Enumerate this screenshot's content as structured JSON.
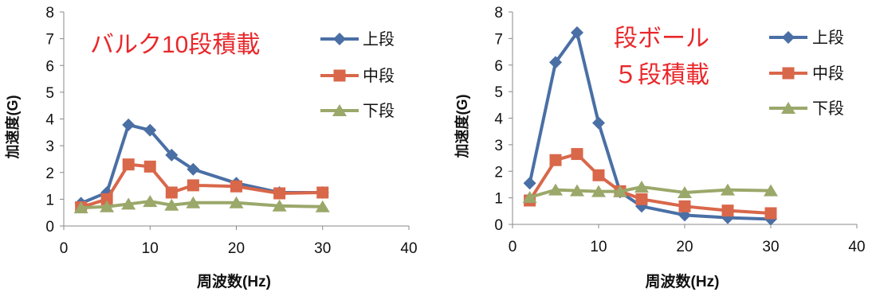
{
  "chart_data": [
    {
      "type": "line",
      "title": "バルク10段積載",
      "xlabel": "周波数(Hz)",
      "ylabel": "加速度(G)",
      "xlim": [
        0,
        40
      ],
      "ylim": [
        0,
        8
      ],
      "xticks": [
        0,
        10,
        20,
        30,
        40
      ],
      "yticks": [
        0,
        1,
        2,
        3,
        4,
        5,
        6,
        7,
        8
      ],
      "legend_position": "right",
      "grid": false,
      "series": [
        {
          "name": "上段",
          "color": "#4a6fa5",
          "marker": "diamond",
          "x": [
            2,
            5,
            7.5,
            10,
            12.5,
            15,
            20,
            25,
            30
          ],
          "y": [
            0.85,
            1.25,
            3.78,
            3.58,
            2.65,
            2.12,
            1.6,
            1.25,
            1.25
          ]
        },
        {
          "name": "中段",
          "color": "#d9674a",
          "marker": "square",
          "x": [
            2,
            5,
            7.5,
            10,
            12.5,
            15,
            20,
            25,
            30
          ],
          "y": [
            0.7,
            1.0,
            2.3,
            2.22,
            1.25,
            1.52,
            1.48,
            1.22,
            1.25
          ]
        },
        {
          "name": "下段",
          "color": "#9aa86a",
          "marker": "triangle",
          "x": [
            2,
            5,
            7.5,
            10,
            12.5,
            15,
            20,
            25,
            30
          ],
          "y": [
            0.68,
            0.72,
            0.82,
            0.92,
            0.78,
            0.87,
            0.87,
            0.75,
            0.72
          ]
        }
      ]
    },
    {
      "type": "line",
      "title": "段ボール\n５段積載",
      "xlabel": "周波数(Hz)",
      "ylabel": "加速度(G)",
      "xlim": [
        0,
        40
      ],
      "ylim": [
        0,
        8
      ],
      "xticks": [
        0,
        10,
        20,
        30,
        40
      ],
      "yticks": [
        0,
        1,
        2,
        3,
        4,
        5,
        6,
        7,
        8
      ],
      "legend_position": "right",
      "grid": false,
      "series": [
        {
          "name": "上段",
          "color": "#4a6fa5",
          "marker": "diamond",
          "x": [
            2,
            5,
            7.5,
            10,
            12.5,
            15,
            20,
            25,
            30
          ],
          "y": [
            1.55,
            6.1,
            7.22,
            3.82,
            1.22,
            0.68,
            0.35,
            0.25,
            0.2
          ]
        },
        {
          "name": "中段",
          "color": "#d9674a",
          "marker": "square",
          "x": [
            2,
            5,
            7.5,
            10,
            12.5,
            15,
            20,
            25,
            30
          ],
          "y": [
            0.9,
            2.42,
            2.65,
            1.85,
            1.25,
            0.95,
            0.68,
            0.52,
            0.42
          ]
        },
        {
          "name": "下段",
          "color": "#9aa86a",
          "marker": "triangle",
          "x": [
            2,
            5,
            7.5,
            10,
            12.5,
            15,
            20,
            25,
            30
          ],
          "y": [
            1.02,
            1.3,
            1.27,
            1.24,
            1.24,
            1.41,
            1.2,
            1.3,
            1.27
          ]
        }
      ]
    }
  ]
}
